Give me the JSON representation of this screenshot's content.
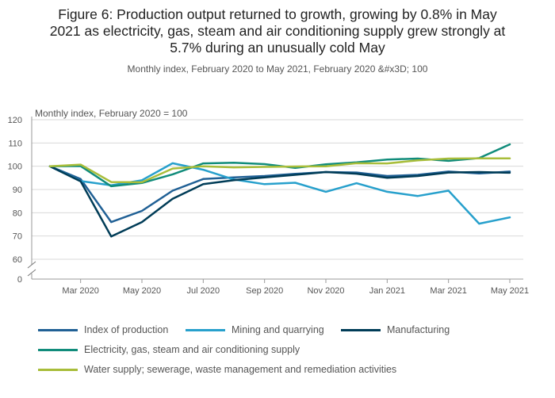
{
  "title_lines": [
    "Figure 6: Production output returned to growth, growing by 0.8% in May",
    "2021 as electricity, gas, steam and air conditioning supply grew strongly at",
    "5.7% during an unusually cold May"
  ],
  "subtitle": "Monthly index, February 2020 to May 2021, February 2020 &#x3D; 100",
  "chart_data": {
    "type": "line",
    "ylabel": "Monthly index, February 2020 = 100",
    "ylim": [
      60,
      120
    ],
    "y_ticks": [
      120,
      110,
      100,
      90,
      80,
      70,
      60,
      0
    ],
    "axis_break": true,
    "x": [
      "Feb 2020",
      "Mar 2020",
      "Apr 2020",
      "May 2020",
      "Jun 2020",
      "Jul 2020",
      "Aug 2020",
      "Sep 2020",
      "Oct 2020",
      "Nov 2020",
      "Dec 2020",
      "Jan 2021",
      "Feb 2021",
      "Mar 2021",
      "Apr 2021",
      "May 2021"
    ],
    "x_tick_labels": [
      "Mar 2020",
      "May 2020",
      "Jul 2020",
      "Sep 2020",
      "Nov 2020",
      "Jan 2021",
      "Mar 2021",
      "May 2021"
    ],
    "series": [
      {
        "name": "Index of production",
        "color": "#206095",
        "values": [
          100,
          94.5,
          76,
          80.8,
          89.5,
          94.5,
          95.2,
          95.8,
          96.7,
          97.5,
          97.3,
          95.8,
          96.3,
          97.7,
          96.9,
          97.7
        ]
      },
      {
        "name": "Mining and quarrying",
        "color": "#27A0CC",
        "values": [
          100,
          93.6,
          91.8,
          94,
          101.3,
          98.5,
          94.3,
          92.3,
          92.9,
          89,
          92.7,
          89,
          87.2,
          89.5,
          75.3,
          78
        ]
      },
      {
        "name": "Manufacturing",
        "color": "#003C57",
        "values": [
          100,
          93.5,
          69.8,
          76,
          86,
          92.3,
          94,
          95.2,
          96.3,
          97.5,
          96.8,
          95,
          95.8,
          97.3,
          97.5,
          97.2
        ]
      },
      {
        "name": "Electricity, gas, steam and air conditioning supply",
        "color": "#118C7B",
        "values": [
          100,
          100.1,
          91.4,
          92.8,
          96.5,
          101.2,
          101.5,
          100.9,
          99.3,
          100.8,
          101.7,
          102.9,
          103.3,
          102.3,
          103.5,
          109.4
        ]
      },
      {
        "name": "Water supply; sewerage, waste management and remediation activities",
        "color": "#A8BD3A",
        "values": [
          100,
          100.7,
          93.2,
          93.1,
          99,
          100,
          99.5,
          99.7,
          99.9,
          100,
          101.3,
          101.2,
          102.5,
          103.3,
          103.4,
          103.4
        ]
      }
    ]
  }
}
